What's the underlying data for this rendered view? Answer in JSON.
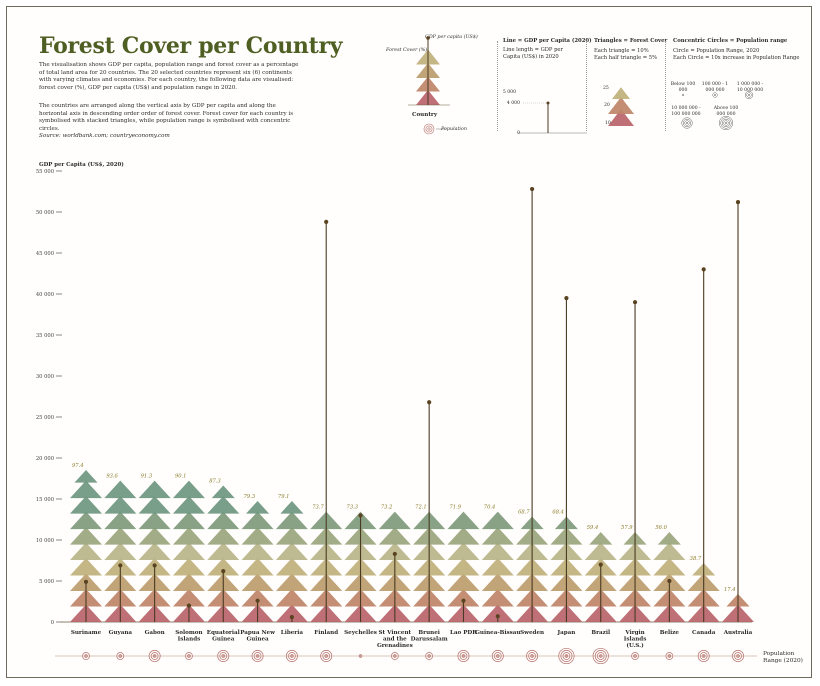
{
  "title": "Forest Cover per Country",
  "intro": [
    "The visualisation shows GDP per capita, population range and forest cover as a percentage of total land area for 20 countries. The 20 selected countries represent six (6) continents with varying climates and economies. For each country, the following data are visualised: forest cover (%), GDP per capita (US$) and population range in 2020.",
    "The countries are arranged along the vertical axis by GDP per capita and along the horizontal axis in descending order order of forest cover. Forest cover for each country is symbolised with stacked triangles, while population range is symbolised with concentric circles."
  ],
  "source": "Source: worldbank.com; countryeconomy.com",
  "legend": {
    "glyph": {
      "gdp_label": "GDP per capita (US$)",
      "forest_label": "Forest Cover (%)",
      "country_label": "Country",
      "population_label": "Population"
    },
    "line": {
      "heading": "Line = GDP per Capita (2020)",
      "text": "Line length = GDP per Capita (US$) in 2020",
      "tick_top": "5 000",
      "tick_mid": "4 000",
      "tick_bottom": "0"
    },
    "triangles": {
      "heading": "Triangles = Forest Cover",
      "line1": "Each triangle = 10%",
      "line2": "Each half triangle = 5%",
      "labels": [
        "25",
        "20",
        "10"
      ]
    },
    "circles": {
      "heading": "Concentric Circles = Population range",
      "line1": "Circle = Population Range, 2020",
      "line2": "Each Circle = 10x increase in Population Range",
      "ranges": [
        "Below 100 000",
        "100 000 - 1 000 000",
        "1 000 000 - 10 000 000",
        "10 000 000 - 100 000 000",
        "Above 100 000 000"
      ]
    }
  },
  "colors": {
    "title": "#4f5e22",
    "triangle_bands": [
      "#b8646a",
      "#be8468",
      "#bc9c6c",
      "#c0b07c",
      "#b8b488",
      "#9aa57c",
      "#7f9a7c",
      "#6e9680"
    ],
    "stem": "#4a3a22",
    "dot": "#5a4320",
    "circle_stroke": "#b7706c",
    "axis_text": "#444444"
  },
  "chart_data": {
    "type": "stacked-triangle pictogram",
    "ylabel": "GDP per Capita (US$, 2020)",
    "ylim": [
      0,
      55000
    ],
    "yticks": [
      0,
      5000,
      10000,
      15000,
      20000,
      25000,
      30000,
      35000,
      40000,
      45000,
      50000,
      55000
    ],
    "ytick_labels": [
      "0",
      "5 000",
      "10 000",
      "15 000",
      "20 000",
      "25 000",
      "30 000",
      "35 000",
      "40 000",
      "45 000",
      "50 000",
      "55 000"
    ],
    "population_axis_label": "Population Range (2020)",
    "countries": [
      "Suriname",
      "Guyana",
      "Gabon",
      "Solomon Islands",
      "Equatorial Guinea",
      "Papua New Guinea",
      "Liberia",
      "Finland",
      "Seychelles",
      "St Vincent and the Grenadines",
      "Brunei Darussalam",
      "Lao PDR",
      "Guinea-Bissau",
      "Sweden",
      "Japan",
      "Brazil",
      "Virgin Islands (U.S.)",
      "Belize",
      "Canada",
      "Australia"
    ],
    "forest_cover_pct": [
      97.4,
      93.6,
      91.3,
      90.1,
      87.3,
      79.3,
      79.1,
      73.7,
      73.3,
      73.2,
      72.1,
      71.9,
      70.4,
      68.7,
      68.4,
      59.4,
      57.9,
      56.0,
      38.7,
      17.4
    ],
    "forest_cover_labels": [
      "97.4",
      "93.6",
      "91.3",
      "90.1",
      "87.3",
      "79.3",
      "79.1",
      "73.7",
      "73.3",
      "73.2",
      "72.1",
      "71.9",
      "70.4",
      "68.7",
      "68.4",
      "59.4",
      "57.9",
      "56.0",
      "38.7",
      "17.4"
    ],
    "gdp_per_capita": [
      4900,
      6900,
      6900,
      2000,
      6200,
      2600,
      600,
      48800,
      13000,
      8300,
      26800,
      2600,
      700,
      52800,
      39500,
      7000,
      39000,
      5000,
      43000,
      51200
    ],
    "population_rings": [
      2,
      2,
      3,
      2,
      3,
      3,
      3,
      3,
      1,
      2,
      2,
      3,
      3,
      3,
      4,
      4,
      2,
      2,
      3,
      3
    ]
  }
}
